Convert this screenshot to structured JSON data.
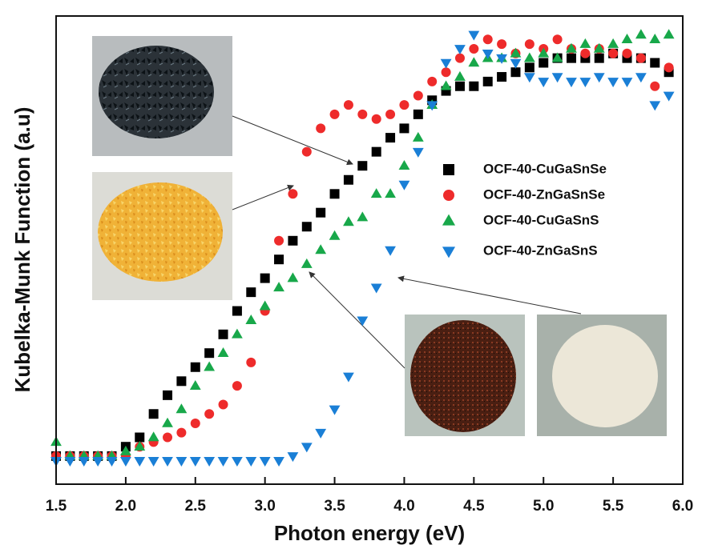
{
  "chart_data": {
    "type": "scatter",
    "x_label": "Photon energy (eV)",
    "y_label": "Kubelka-Munk Function (a.u)",
    "x": [
      1.5,
      1.6,
      1.7,
      1.8,
      1.9,
      2.0,
      2.1,
      2.2,
      2.3,
      2.4,
      2.5,
      2.6,
      2.7,
      2.8,
      2.9,
      3.0,
      3.1,
      3.2,
      3.3,
      3.4,
      3.5,
      3.6,
      3.7,
      3.8,
      3.9,
      4.0,
      4.1,
      4.2,
      4.3,
      4.4,
      4.5,
      4.6,
      4.7,
      4.8,
      4.9,
      5.0,
      5.1,
      5.2,
      5.3,
      5.4,
      5.5,
      5.6,
      5.7,
      5.8,
      5.9
    ],
    "xlim": [
      1.5,
      6.0
    ],
    "ylim": [
      0,
      1
    ],
    "xticks": [
      1.5,
      {
        "value": 2,
        "label": "2.0"
      },
      2.5,
      {
        "value": 3,
        "label": "3.0"
      },
      3.5,
      {
        "value": 4,
        "label": "4.0"
      },
      4.5,
      {
        "value": 5,
        "label": "5.0"
      },
      5.5,
      {
        "value": 6,
        "label": "6.0"
      }
    ],
    "series": [
      {
        "name": "OCF-40-CuGaSnSe",
        "color": "#000000",
        "marker": "square",
        "values": [
          0.06,
          0.06,
          0.06,
          0.06,
          0.06,
          0.08,
          0.1,
          0.15,
          0.19,
          0.22,
          0.25,
          0.28,
          0.32,
          0.37,
          0.41,
          0.44,
          0.48,
          0.52,
          0.55,
          0.58,
          0.62,
          0.65,
          0.68,
          0.71,
          0.74,
          0.76,
          0.79,
          0.82,
          0.84,
          0.85,
          0.85,
          0.86,
          0.87,
          0.88,
          0.89,
          0.9,
          0.91,
          0.91,
          0.91,
          0.91,
          0.92,
          0.91,
          0.91,
          0.9,
          0.88
        ]
      },
      {
        "name": "OCF-40-ZnGaSnSe",
        "color": "#ee2b2b",
        "marker": "circle",
        "values": [
          0.06,
          0.06,
          0.06,
          0.06,
          0.06,
          0.06,
          0.08,
          0.09,
          0.1,
          0.11,
          0.13,
          0.15,
          0.17,
          0.21,
          0.26,
          0.37,
          0.52,
          0.62,
          0.71,
          0.76,
          0.79,
          0.81,
          0.79,
          0.78,
          0.79,
          0.81,
          0.83,
          0.86,
          0.88,
          0.91,
          0.93,
          0.95,
          0.94,
          0.92,
          0.94,
          0.93,
          0.95,
          0.93,
          0.92,
          0.93,
          0.92,
          0.92,
          0.91,
          0.85,
          0.89
        ]
      },
      {
        "name": "OCF-40-CuGaSnS",
        "color": "#18a84a",
        "marker": "triangle-up",
        "values": [
          0.09,
          0.06,
          0.06,
          0.06,
          0.06,
          0.07,
          0.08,
          0.1,
          0.13,
          0.16,
          0.21,
          0.25,
          0.28,
          0.32,
          0.35,
          0.38,
          0.42,
          0.44,
          0.47,
          0.5,
          0.53,
          0.56,
          0.57,
          0.62,
          0.62,
          0.68,
          0.74,
          0.81,
          0.85,
          0.87,
          0.9,
          0.91,
          0.91,
          0.92,
          0.91,
          0.92,
          0.91,
          0.93,
          0.94,
          0.93,
          0.94,
          0.95,
          0.96,
          0.95,
          0.96
        ]
      },
      {
        "name": "OCF-40-ZnGaSnS",
        "color": "#1a7fd6",
        "marker": "triangle-down",
        "values": [
          0.05,
          0.05,
          0.05,
          0.05,
          0.05,
          0.05,
          0.05,
          0.05,
          0.05,
          0.05,
          0.05,
          0.05,
          0.05,
          0.05,
          0.05,
          0.05,
          0.05,
          0.06,
          0.08,
          0.11,
          0.16,
          0.23,
          0.35,
          0.42,
          0.5,
          0.64,
          0.71,
          0.81,
          0.9,
          0.93,
          0.96,
          0.92,
          0.91,
          0.9,
          0.87,
          0.86,
          0.87,
          0.86,
          0.86,
          0.87,
          0.86,
          0.86,
          0.87,
          0.81,
          0.83
        ]
      }
    ]
  }
}
